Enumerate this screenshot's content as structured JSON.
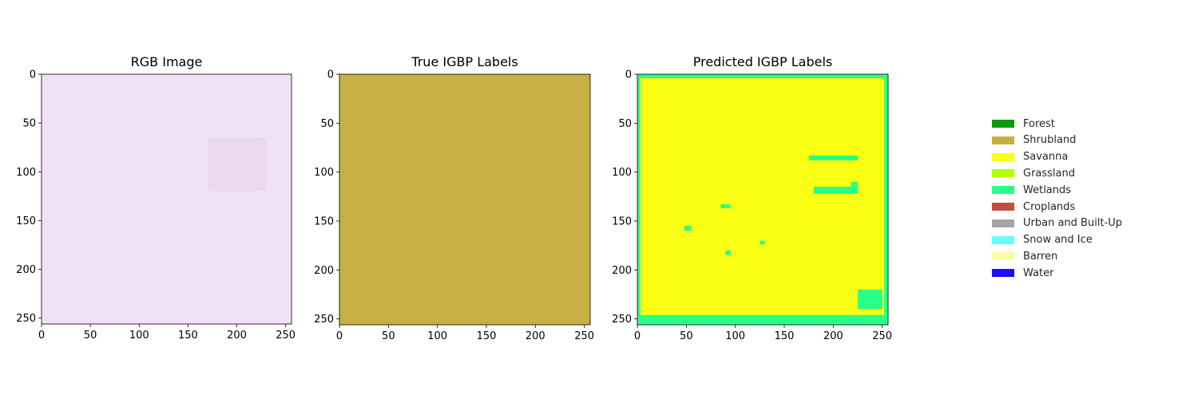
{
  "chart_data": [
    {
      "type": "heatmap",
      "title": "RGB Image",
      "xlabel": "",
      "ylabel": "",
      "xlim": [
        0,
        256
      ],
      "ylim": [
        256,
        0
      ],
      "xticks": [
        "0",
        "50",
        "100",
        "150",
        "200",
        "250"
      ],
      "yticks": [
        "0",
        "50",
        "100",
        "150",
        "200",
        "250"
      ],
      "base_color": "#f1e1f7",
      "features": [
        {
          "kind": "faint-square",
          "x": [
            170,
            230
          ],
          "y": [
            65,
            120
          ],
          "color": "#e9d8ee"
        }
      ]
    },
    {
      "type": "heatmap",
      "title": "True IGBP Labels",
      "xlabel": "",
      "ylabel": "",
      "xlim": [
        0,
        256
      ],
      "ylim": [
        256,
        0
      ],
      "xticks": [
        "0",
        "50",
        "100",
        "150",
        "200",
        "250"
      ],
      "yticks": [
        "0",
        "50",
        "100",
        "150",
        "200",
        "250"
      ],
      "base_class": "Shrubland",
      "base_color": "#c6b044"
    },
    {
      "type": "heatmap",
      "title": "Predicted IGBP Labels",
      "xlabel": "",
      "ylabel": "",
      "xlim": [
        0,
        256
      ],
      "ylim": [
        256,
        0
      ],
      "xticks": [
        "0",
        "50",
        "100",
        "150",
        "200",
        "250"
      ],
      "yticks": [
        "0",
        "50",
        "100",
        "150",
        "200",
        "250"
      ],
      "base_class": "Savanna",
      "base_color": "#fbff13",
      "border_class": "Wetlands",
      "border_color": "#27ff87",
      "patches": [
        {
          "x": [
            0,
            256
          ],
          "y": [
            0,
            4
          ]
        },
        {
          "x": [
            0,
            256
          ],
          "y": [
            246,
            256
          ]
        },
        {
          "x": [
            0,
            3
          ],
          "y": [
            0,
            256
          ]
        },
        {
          "x": [
            252,
            256
          ],
          "y": [
            0,
            256
          ]
        },
        {
          "x": [
            175,
            225
          ],
          "y": [
            83,
            88
          ]
        },
        {
          "x": [
            180,
            225
          ],
          "y": [
            115,
            122
          ]
        },
        {
          "x": [
            218,
            225
          ],
          "y": [
            110,
            120
          ]
        },
        {
          "x": [
            225,
            250
          ],
          "y": [
            220,
            240
          ]
        },
        {
          "x": [
            85,
            95
          ],
          "y": [
            133,
            137
          ]
        },
        {
          "x": [
            48,
            55
          ],
          "y": [
            155,
            160
          ]
        },
        {
          "x": [
            125,
            130
          ],
          "y": [
            170,
            174
          ]
        },
        {
          "x": [
            90,
            95
          ],
          "y": [
            180,
            185
          ]
        }
      ]
    }
  ],
  "legend": {
    "items": [
      {
        "label": "Forest",
        "color": "#0a9a0a"
      },
      {
        "label": "Shrubland",
        "color": "#c6b044"
      },
      {
        "label": "Savanna",
        "color": "#fbff13"
      },
      {
        "label": "Grassland",
        "color": "#b6ff05"
      },
      {
        "label": "Wetlands",
        "color": "#27ff87"
      },
      {
        "label": "Croplands",
        "color": "#c24f44"
      },
      {
        "label": "Urban and Built-Up",
        "color": "#a5a5a5"
      },
      {
        "label": "Snow and Ice",
        "color": "#69fff8"
      },
      {
        "label": "Barren",
        "color": "#f9ffa4"
      },
      {
        "label": "Water",
        "color": "#1c0dff"
      }
    ]
  }
}
